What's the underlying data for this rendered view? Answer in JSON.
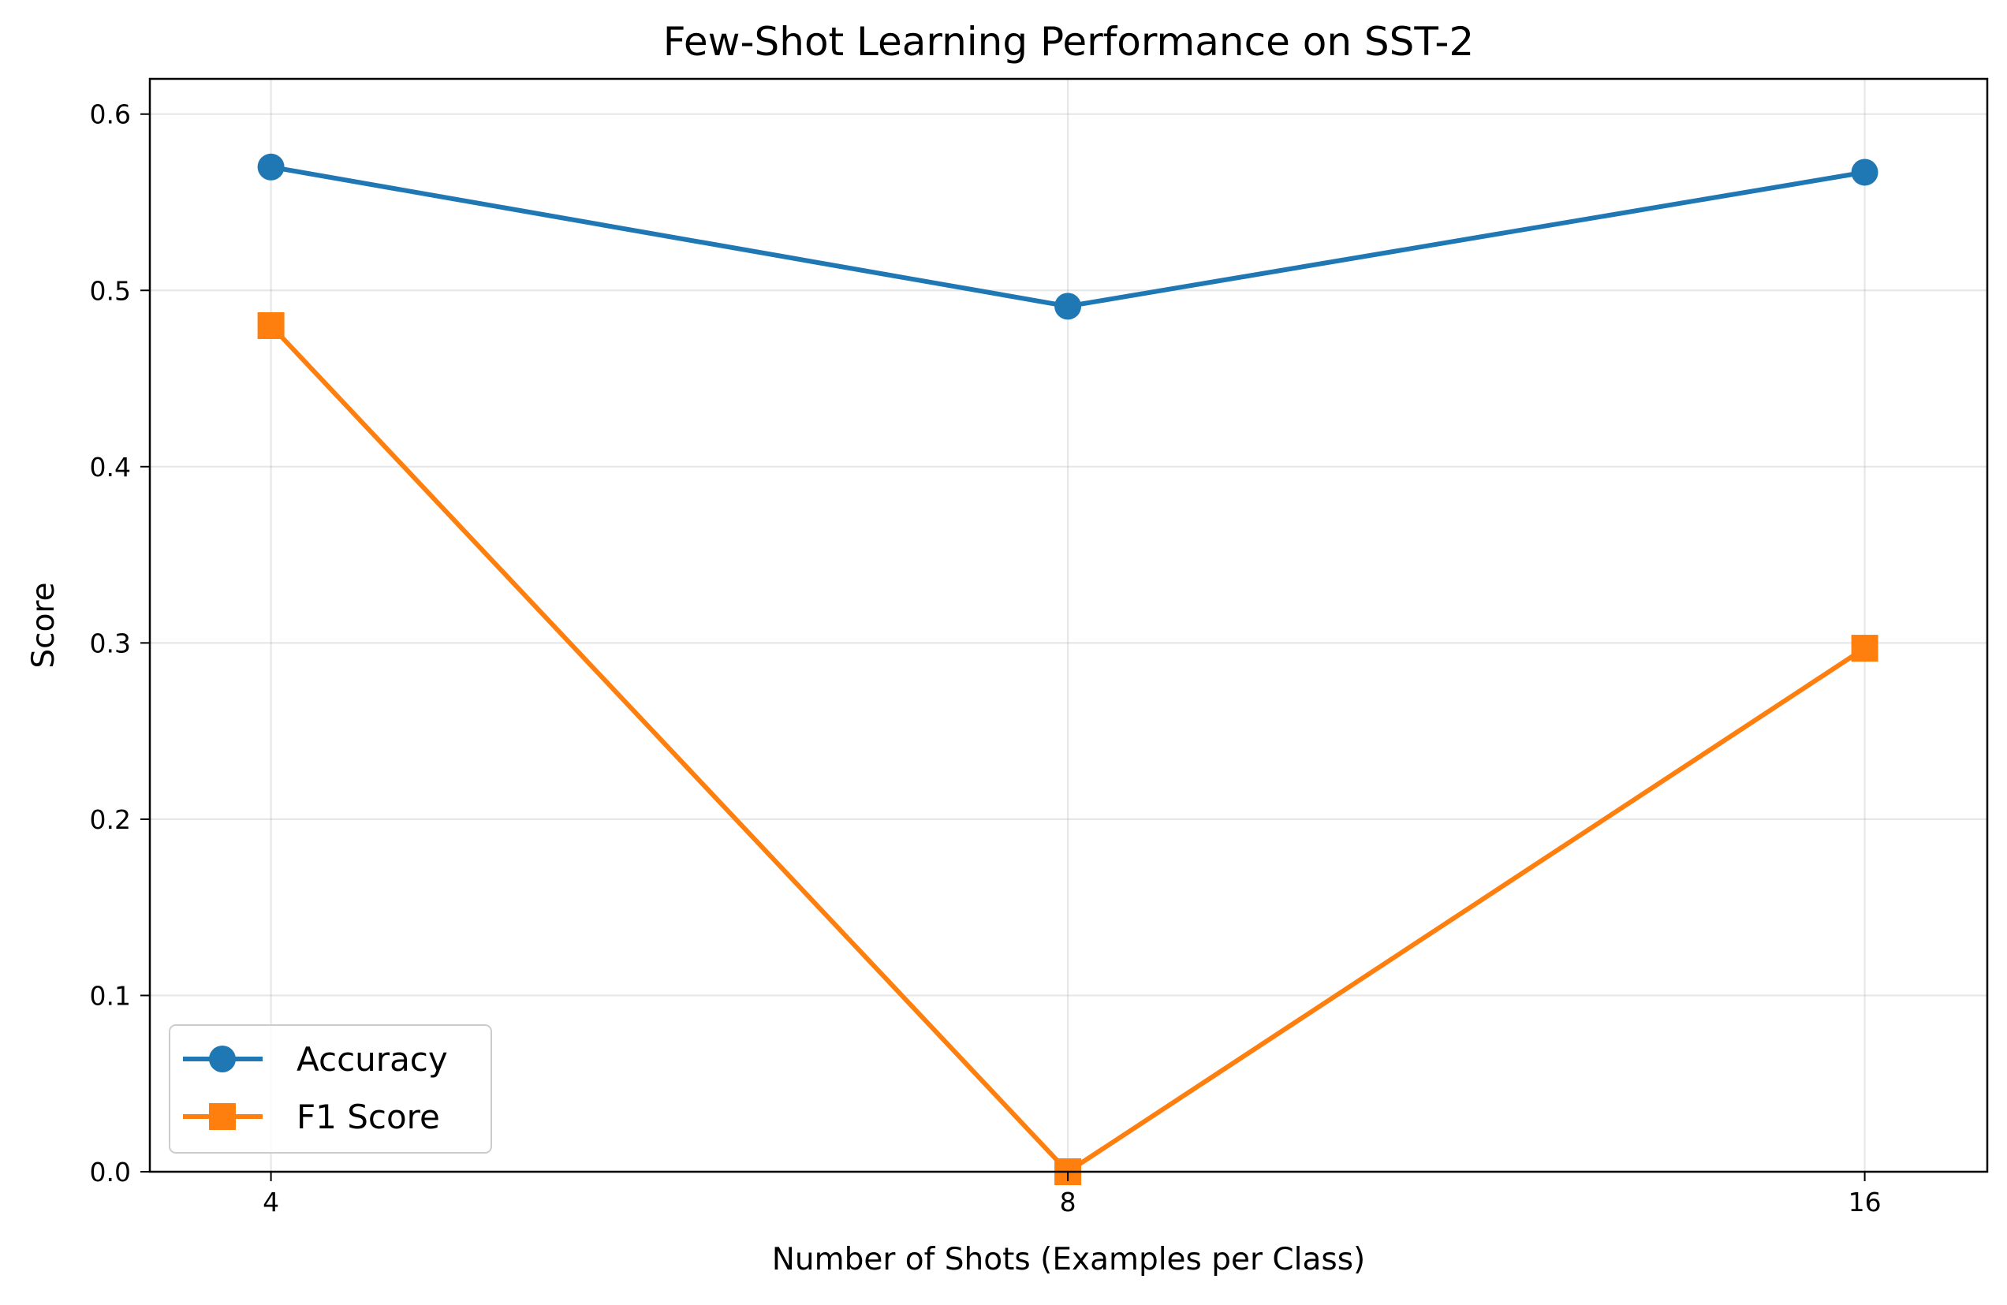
{
  "chart_data": {
    "type": "line",
    "title": "Few-Shot Learning Performance on SST-2",
    "xlabel": "Number of Shots (Examples per Class)",
    "ylabel": "Score",
    "x_scale": "log",
    "x": [
      4,
      8,
      16
    ],
    "x_tick_labels": [
      "4",
      "8",
      "16"
    ],
    "y_ticks": [
      0.0,
      0.1,
      0.2,
      0.3,
      0.4,
      0.5,
      0.6
    ],
    "y_tick_labels": [
      "0.0",
      "0.1",
      "0.2",
      "0.3",
      "0.4",
      "0.5",
      "0.6"
    ],
    "xlim": [
      3.6,
      17.8
    ],
    "ylim": [
      0.0,
      0.62
    ],
    "grid": true,
    "legend_position": "lower-left",
    "series": [
      {
        "name": "Accuracy",
        "values": [
          0.57,
          0.491,
          0.567
        ],
        "color": "#1f77b4",
        "marker": "circle"
      },
      {
        "name": "F1 Score",
        "values": [
          0.48,
          0.0,
          0.297
        ],
        "color": "#ff7f0e",
        "marker": "square"
      }
    ]
  }
}
